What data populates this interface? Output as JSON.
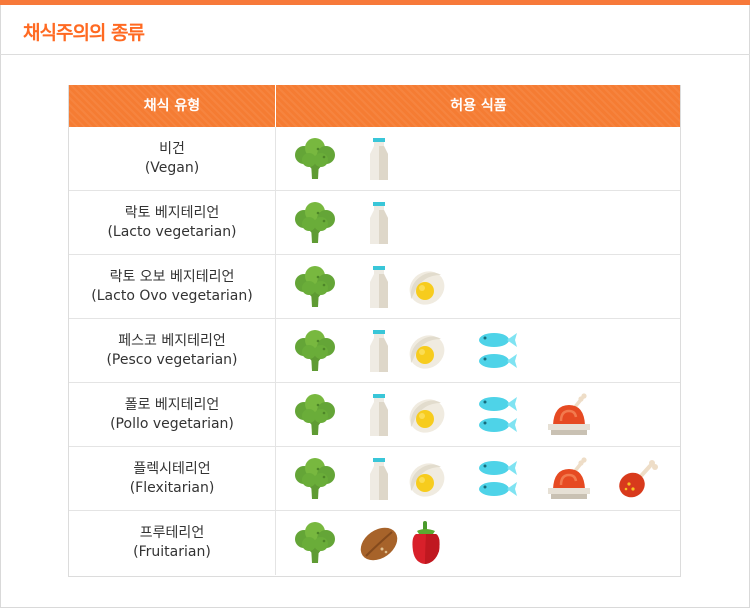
{
  "title": "채식주의의 종류",
  "table": {
    "headers": {
      "type": "채식 유형",
      "foods": "허용 식품"
    },
    "rows": [
      {
        "ko": "비건",
        "en": "(Vegan)",
        "foods": [
          "broccoli-icon",
          "milk-icon"
        ]
      },
      {
        "ko": "락토 베지테리언",
        "en": "(Lacto vegetarian)",
        "foods": [
          "broccoli-icon",
          "milk-icon"
        ]
      },
      {
        "ko": "락토 오보 베지테리언",
        "en": "(Lacto Ovo vegetarian)",
        "foods": [
          "broccoli-icon",
          "milk-icon",
          "egg-icon"
        ]
      },
      {
        "ko": "페스코 베지테리언",
        "en": "(Pesco vegetarian)",
        "foods": [
          "broccoli-icon",
          "milk-icon",
          "egg-icon",
          "fish-icon"
        ]
      },
      {
        "ko": "폴로 베지테리언",
        "en": "(Pollo vegetarian)",
        "foods": [
          "broccoli-icon",
          "milk-icon",
          "egg-icon",
          "fish-icon",
          "roast-chicken-icon"
        ]
      },
      {
        "ko": "플렉시테리언",
        "en": "(Flexitarian)",
        "foods": [
          "broccoli-icon",
          "milk-icon",
          "egg-icon",
          "fish-icon",
          "roast-chicken-icon",
          "drumstick-icon"
        ]
      },
      {
        "ko": "프루테리언",
        "en": "(Fruitarian)",
        "foods": [
          "broccoli-icon",
          "nut-icon",
          "pepper-icon"
        ]
      }
    ]
  },
  "colors": {
    "accent": "#f57c33",
    "title": "#ff6a22"
  }
}
